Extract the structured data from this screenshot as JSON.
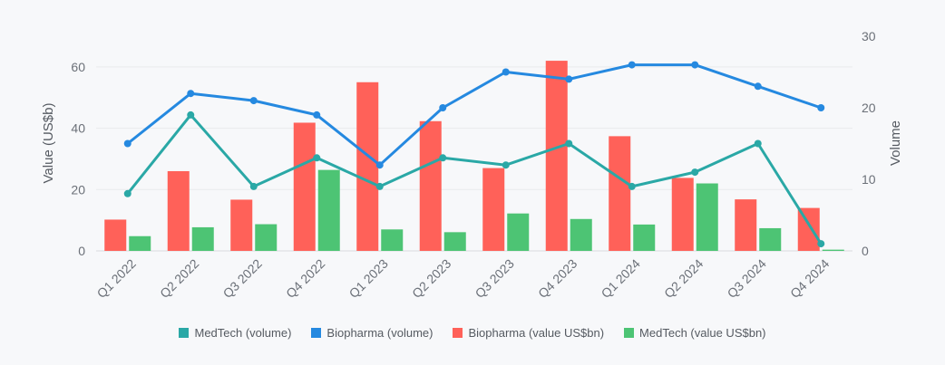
{
  "chart_data": {
    "type": "bar",
    "categories": [
      "Q1 2022",
      "Q2 2022",
      "Q3 2022",
      "Q4 2022",
      "Q1 2023",
      "Q2 2023",
      "Q3 2023",
      "Q4 2023",
      "Q1 2024",
      "Q2 2024",
      "Q3 2024",
      "Q4 2024"
    ],
    "ylabel_left": "Value (US$b)",
    "ylabel_right": "Volume",
    "ylim_left": [
      0,
      70
    ],
    "yticks_left": [
      0,
      20,
      40,
      60
    ],
    "ylim_right": [
      0,
      30
    ],
    "yticks_right": [
      0,
      10,
      20,
      30
    ],
    "grid": true,
    "legend_position": "bottom",
    "series": [
      {
        "name": "MedTech (volume)",
        "type": "line",
        "axis": "right",
        "color": "#2aa8a6",
        "values": [
          8,
          19,
          9,
          13,
          9,
          13,
          12,
          15,
          9,
          11,
          15,
          1
        ]
      },
      {
        "name": "Biopharma (volume)",
        "type": "line",
        "axis": "right",
        "color": "#2589e0",
        "values": [
          15,
          22,
          21,
          19,
          12,
          20,
          25,
          24,
          26,
          26,
          23,
          20
        ]
      },
      {
        "name": "Biopharma (value US$bn)",
        "type": "bar",
        "axis": "left",
        "color": "#ff6159",
        "values": [
          10.2,
          26,
          16.7,
          41.8,
          55,
          42.3,
          27,
          62,
          37.4,
          23.8,
          16.8,
          14
        ]
      },
      {
        "name": "MedTech (value US$bn)",
        "type": "bar",
        "axis": "left",
        "color": "#4dc474",
        "values": [
          4.8,
          7.7,
          8.7,
          26.4,
          7,
          6.1,
          12.2,
          10.4,
          8.6,
          22,
          7.4,
          0.4
        ]
      }
    ]
  }
}
